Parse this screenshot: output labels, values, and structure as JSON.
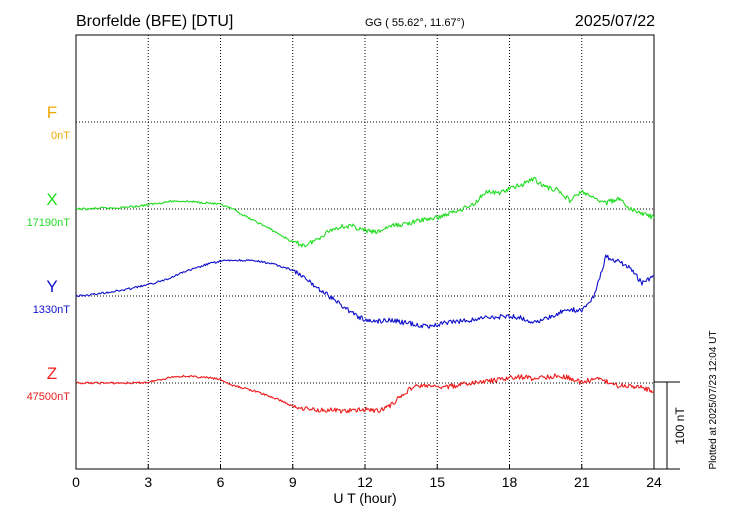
{
  "header": {
    "station": "Brorfelde (BFE)  [DTU]",
    "coords": "GG ( 55.62°,  11.67°)",
    "date": "2025/07/22"
  },
  "footer": {
    "plotted": "Plotted at 2025/07/23 12:04 UT",
    "scale_label": "100 nT"
  },
  "chart_data": {
    "type": "line",
    "title": "",
    "xlabel": "U T (hour)",
    "ylabel": "",
    "xlim": [
      0,
      24
    ],
    "x_ticks": [
      "0",
      "3",
      "6",
      "9",
      "12",
      "15",
      "18",
      "21",
      "24"
    ],
    "grid": true,
    "scale_bar_nT": 100,
    "series": [
      {
        "name": "F",
        "baseline_label": "0nT",
        "color": "#f0a800",
        "x": [],
        "y": []
      },
      {
        "name": "X",
        "baseline_label": "17190nT",
        "color": "#22dd22",
        "x": [
          0,
          0.5,
          1,
          1.5,
          2,
          2.5,
          3,
          3.5,
          4,
          4.5,
          5,
          5.5,
          6,
          6.5,
          7,
          7.5,
          8,
          8.5,
          9,
          9.5,
          10,
          10.5,
          11,
          11.5,
          12,
          12.5,
          13,
          13.5,
          14,
          14.5,
          15,
          15.5,
          16,
          16.5,
          17,
          17.5,
          18,
          18.5,
          19,
          19.5,
          20,
          20.5,
          21,
          21.5,
          22,
          22.5,
          23,
          23.5,
          24
        ],
        "y": [
          17190,
          17190,
          17191,
          17191,
          17192,
          17193,
          17195,
          17197,
          17199,
          17199,
          17198,
          17197,
          17195,
          17190,
          17182,
          17175,
          17168,
          17160,
          17152,
          17148,
          17155,
          17165,
          17170,
          17170,
          17165,
          17163,
          17170,
          17172,
          17175,
          17178,
          17180,
          17185,
          17190,
          17195,
          17210,
          17208,
          17213,
          17218,
          17225,
          17215,
          17212,
          17200,
          17210,
          17202,
          17197,
          17202,
          17190,
          17185,
          17180
        ]
      },
      {
        "name": "Y",
        "baseline_label": "1330nT",
        "color": "#1010cc",
        "x": [
          0,
          0.5,
          1,
          1.5,
          2,
          2.5,
          3,
          3.5,
          4,
          4.5,
          5,
          5.5,
          6,
          6.5,
          7,
          7.5,
          8,
          8.5,
          9,
          9.5,
          10,
          10.5,
          11,
          11.5,
          12,
          12.5,
          13,
          13.5,
          14,
          14.5,
          15,
          15.5,
          16,
          16.5,
          17,
          17.5,
          18,
          18.5,
          19,
          19.5,
          20,
          20.5,
          21,
          21.5,
          22,
          22.5,
          23,
          23.5,
          24
        ],
        "y": [
          1330,
          1331,
          1333,
          1335,
          1337,
          1340,
          1343,
          1347,
          1352,
          1358,
          1362,
          1367,
          1370,
          1371,
          1371,
          1370,
          1368,
          1364,
          1360,
          1350,
          1340,
          1330,
          1320,
          1310,
          1302,
          1301,
          1303,
          1300,
          1298,
          1295,
          1297,
          1300,
          1301,
          1303,
          1305,
          1306,
          1307,
          1305,
          1300,
          1303,
          1310,
          1315,
          1313,
          1330,
          1375,
          1370,
          1362,
          1345,
          1353
        ]
      },
      {
        "name": "Z",
        "baseline_label": "47500nT",
        "color": "#ee1c1c",
        "x": [
          0,
          0.5,
          1,
          1.5,
          2,
          2.5,
          3,
          3.5,
          4,
          4.5,
          5,
          5.5,
          6,
          6.5,
          7,
          7.5,
          8,
          8.5,
          9,
          9.5,
          10,
          10.5,
          11,
          11.5,
          12,
          12.5,
          13,
          13.5,
          14,
          14.5,
          15,
          15.5,
          16,
          16.5,
          17,
          17.5,
          18,
          18.5,
          19,
          19.5,
          20,
          20.5,
          21,
          21.5,
          22,
          22.5,
          23,
          23.5,
          24
        ],
        "y": [
          47500,
          47500,
          47500,
          47500,
          47500,
          47500,
          47501,
          47504,
          47507,
          47508,
          47507,
          47506,
          47504,
          47497,
          47494,
          47490,
          47485,
          47480,
          47473,
          47471,
          47469,
          47469,
          47468,
          47468,
          47470,
          47468,
          47473,
          47485,
          47496,
          47497,
          47495,
          47496,
          47498,
          47500,
          47502,
          47503,
          47506,
          47507,
          47505,
          47507,
          47508,
          47506,
          47500,
          47505,
          47502,
          47497,
          47497,
          47495,
          47490
        ]
      }
    ]
  }
}
